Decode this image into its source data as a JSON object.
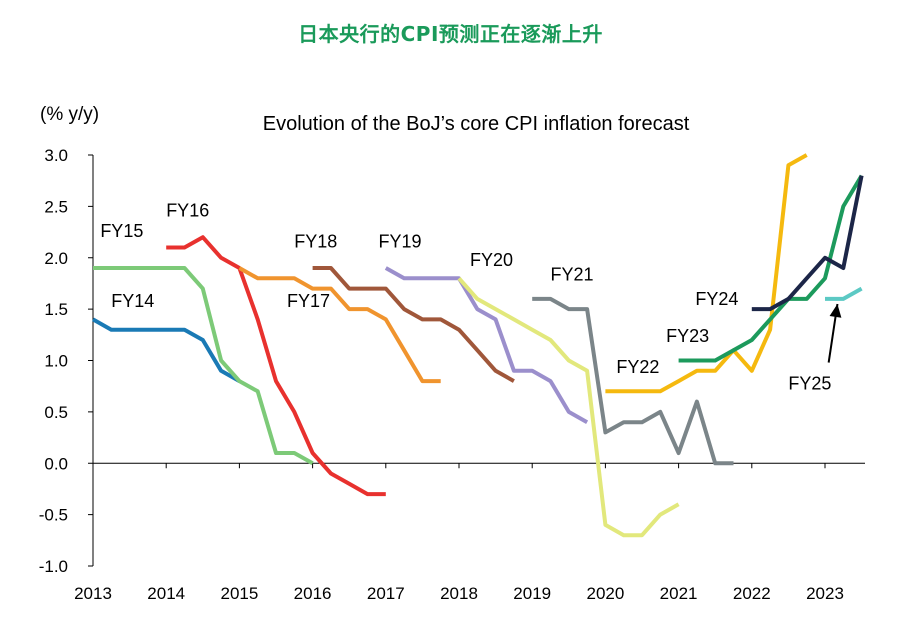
{
  "heading": "日本央行的CPI预测正在逐渐上升",
  "chart_data": {
    "type": "line",
    "title": "Evolution of the BoJ’s core CPI inflation forecast",
    "ylabel": "(% y/y)",
    "xlabel": "",
    "ylim": [
      -1.0,
      3.0
    ],
    "xlim": [
      2013.0,
      2023.55
    ],
    "yticks": [
      "3.0",
      "2.5",
      "2.0",
      "1.5",
      "1.0",
      "0.5",
      "0.0",
      "-0.5",
      "-1.0"
    ],
    "xticks": [
      "2013",
      "2014",
      "2015",
      "2016",
      "2017",
      "2018",
      "2019",
      "2020",
      "2021",
      "2022",
      "2023"
    ],
    "grid": false,
    "series": [
      {
        "name": "FY14",
        "color": "#1a7ab5",
        "x": [
          2013.0,
          2013.25,
          2013.5,
          2013.75,
          2014.0,
          2014.25,
          2014.5,
          2014.75,
          2015.0
        ],
        "y": [
          1.4,
          1.3,
          1.3,
          1.3,
          1.3,
          1.3,
          1.2,
          0.9,
          0.8
        ]
      },
      {
        "name": "FY15",
        "color": "#7dca78",
        "x": [
          2013.0,
          2013.25,
          2013.5,
          2013.75,
          2014.0,
          2014.25,
          2014.5,
          2014.75,
          2015.0,
          2015.25,
          2015.5,
          2015.75,
          2016.0
        ],
        "y": [
          1.9,
          1.9,
          1.9,
          1.9,
          1.9,
          1.9,
          1.7,
          1.0,
          0.8,
          0.7,
          0.1,
          0.1,
          0.0
        ]
      },
      {
        "name": "FY16",
        "color": "#e8312e",
        "x": [
          2014.0,
          2014.25,
          2014.5,
          2014.75,
          2015.0,
          2015.25,
          2015.5,
          2015.75,
          2016.0,
          2016.25,
          2016.5,
          2016.75,
          2017.0
        ],
        "y": [
          2.1,
          2.1,
          2.2,
          2.0,
          1.9,
          1.4,
          0.8,
          0.5,
          0.1,
          -0.1,
          -0.2,
          -0.3,
          -0.3
        ]
      },
      {
        "name": "FY17",
        "color": "#f0942e",
        "x": [
          2015.0,
          2015.25,
          2015.5,
          2015.75,
          2016.0,
          2016.25,
          2016.5,
          2016.75,
          2017.0,
          2017.25,
          2017.5,
          2017.75
        ],
        "y": [
          1.9,
          1.8,
          1.8,
          1.8,
          1.7,
          1.7,
          1.5,
          1.5,
          1.4,
          1.1,
          0.8,
          0.8
        ]
      },
      {
        "name": "FY18",
        "color": "#a0573a",
        "x": [
          2016.0,
          2016.25,
          2016.5,
          2016.75,
          2017.0,
          2017.25,
          2017.5,
          2017.75,
          2018.0,
          2018.25,
          2018.5,
          2018.75
        ],
        "y": [
          1.9,
          1.9,
          1.7,
          1.7,
          1.7,
          1.5,
          1.4,
          1.4,
          1.3,
          1.1,
          0.9,
          0.8
        ]
      },
      {
        "name": "FY19",
        "color": "#9b8fcc",
        "x": [
          2017.0,
          2017.25,
          2017.5,
          2017.75,
          2018.0,
          2018.25,
          2018.5,
          2018.75,
          2019.0,
          2019.25,
          2019.5,
          2019.75
        ],
        "y": [
          1.9,
          1.8,
          1.8,
          1.8,
          1.8,
          1.5,
          1.4,
          0.9,
          0.9,
          0.8,
          0.5,
          0.4
        ]
      },
      {
        "name": "FY20",
        "color": "#e2e87c",
        "x": [
          2018.0,
          2018.25,
          2018.5,
          2018.75,
          2019.0,
          2019.25,
          2019.5,
          2019.75,
          2020.0,
          2020.25,
          2020.5,
          2020.75,
          2021.0
        ],
        "y": [
          1.8,
          1.6,
          1.5,
          1.4,
          1.3,
          1.2,
          1.0,
          0.9,
          -0.6,
          -0.7,
          -0.7,
          -0.5,
          -0.4
        ]
      },
      {
        "name": "FY21",
        "color": "#7b8589",
        "x": [
          2019.0,
          2019.25,
          2019.5,
          2019.75,
          2020.0,
          2020.25,
          2020.5,
          2020.75,
          2021.0,
          2021.25,
          2021.5,
          2021.75
        ],
        "y": [
          1.6,
          1.6,
          1.5,
          1.5,
          0.3,
          0.4,
          0.4,
          0.5,
          0.1,
          0.6,
          0.0,
          0.0
        ]
      },
      {
        "name": "FY22",
        "color": "#f5b90f",
        "x": [
          2020.0,
          2020.25,
          2020.5,
          2020.75,
          2021.0,
          2021.25,
          2021.5,
          2021.75,
          2022.0,
          2022.25,
          2022.5,
          2022.75
        ],
        "y": [
          0.7,
          0.7,
          0.7,
          0.7,
          0.8,
          0.9,
          0.9,
          1.1,
          0.9,
          1.3,
          2.9,
          3.0
        ]
      },
      {
        "name": "FY23",
        "color": "#1c9a5c",
        "x": [
          2021.0,
          2021.25,
          2021.5,
          2021.75,
          2022.0,
          2022.25,
          2022.5,
          2022.75,
          2023.0,
          2023.25,
          2023.5
        ],
        "y": [
          1.0,
          1.0,
          1.0,
          1.1,
          1.2,
          1.4,
          1.6,
          1.6,
          1.8,
          2.5,
          2.8
        ]
      },
      {
        "name": "FY24",
        "color": "#1c2648",
        "x": [
          2022.0,
          2022.25,
          2022.5,
          2022.75,
          2023.0,
          2023.25,
          2023.5
        ],
        "y": [
          1.5,
          1.5,
          1.6,
          1.8,
          2.0,
          1.9,
          2.8
        ]
      },
      {
        "name": "FY25",
        "color": "#5cc9c4",
        "x": [
          2023.0,
          2023.25,
          2023.5
        ],
        "y": [
          1.6,
          1.6,
          1.7
        ]
      }
    ],
    "annotations": [
      {
        "text": "FY14",
        "x": 2013.25,
        "y": 1.52
      },
      {
        "text": "FY15",
        "x": 2013.1,
        "y": 2.2
      },
      {
        "text": "FY16",
        "x": 2014.0,
        "y": 2.4
      },
      {
        "text": "FY17",
        "x": 2015.65,
        "y": 1.52
      },
      {
        "text": "FY18",
        "x": 2015.75,
        "y": 2.1
      },
      {
        "text": "FY19",
        "x": 2016.9,
        "y": 2.1
      },
      {
        "text": "FY20",
        "x": 2018.15,
        "y": 1.92
      },
      {
        "text": "FY21",
        "x": 2019.25,
        "y": 1.78
      },
      {
        "text": "FY22",
        "x": 2020.15,
        "y": 0.88
      },
      {
        "text": "FY23",
        "x": 2020.83,
        "y": 1.18
      },
      {
        "text": "FY24",
        "x": 2021.23,
        "y": 1.54
      },
      {
        "text": "FY25",
        "x": 2022.5,
        "y": 0.72
      }
    ]
  }
}
